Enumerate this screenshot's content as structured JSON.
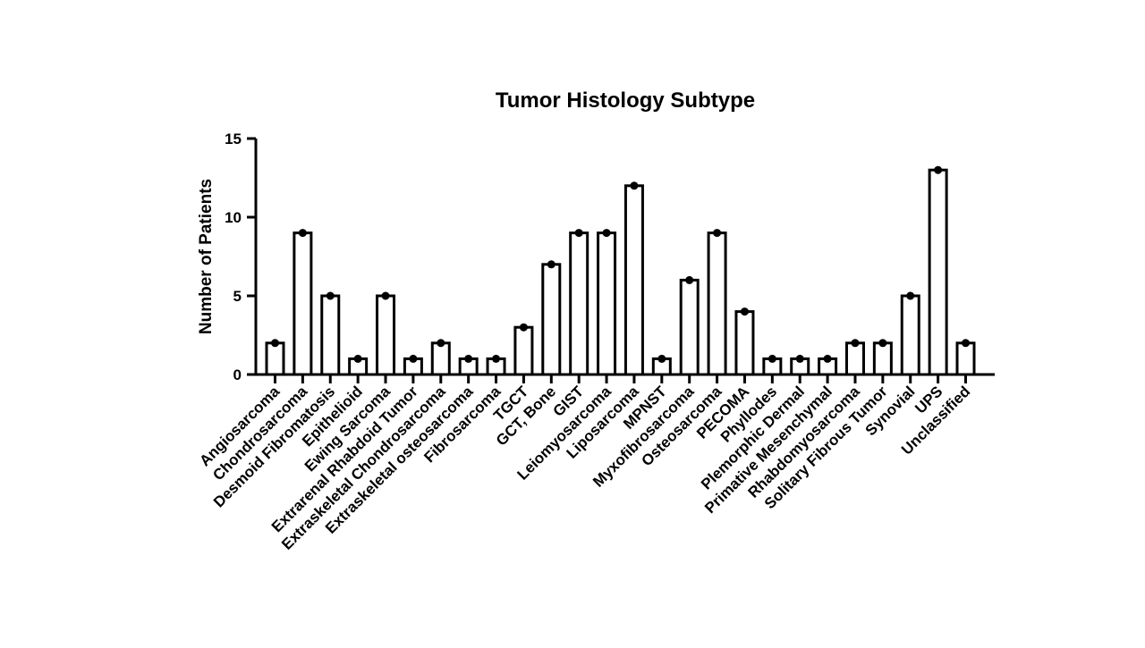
{
  "chart_data": {
    "type": "bar",
    "title": "Tumor Histology Subtype",
    "xlabel": "",
    "ylabel": "Number of Patients",
    "ylim": [
      0,
      15
    ],
    "yticks": [
      0,
      5,
      10,
      15
    ],
    "grid": false,
    "legend": "none",
    "categories": [
      "Angiosarcoma",
      "Chondrosarcoma",
      "Desmoid Fibromatosis",
      "Epithelioid",
      "Ewing Sarcoma",
      "Extrarenal Rhabdoid Tumor",
      "Extraskeletal Chondrosarcoma",
      "Extraskeletal osteosarcoma",
      "Fibrosarcoma",
      "TGCT",
      "GCT, Bone",
      "GIST",
      "Leiomyosarcoma",
      "Liposarcoma",
      "MPNST",
      "Myxofibrosarcoma",
      "Osteosarcoma",
      "PECOMA",
      "Phyllodes",
      "Plemorphic Dermal",
      "Primative Mesenchymal",
      "Rhabdomyosarcoma",
      "Solitary Fibrous Tumor",
      "Synovial",
      "UPS",
      "Unclassified"
    ],
    "values": [
      2,
      9,
      5,
      1,
      5,
      1,
      2,
      1,
      1,
      3,
      7,
      9,
      9,
      12,
      1,
      6,
      9,
      4,
      1,
      1,
      1,
      2,
      2,
      5,
      13,
      2
    ],
    "bar_fill": "#ffffff",
    "bar_stroke": "#000000"
  }
}
